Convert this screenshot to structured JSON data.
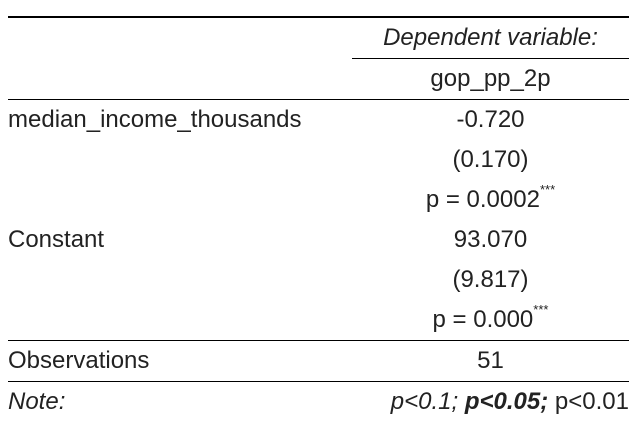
{
  "table": {
    "header": {
      "dependent_variable_caption": "Dependent variable:",
      "model_name": "gop_pp_2p"
    },
    "rows": [
      {
        "label": "median_income_thousands",
        "coefficient": "-0.720",
        "std_error": "(0.170)",
        "p_value": "p = 0.0002",
        "stars": "***"
      },
      {
        "label": "Constant",
        "coefficient": "93.070",
        "std_error": "(9.817)",
        "p_value": "p = 0.000",
        "stars": "***"
      }
    ],
    "observations": {
      "label": "Observations",
      "value": "51"
    },
    "note": {
      "label": "Note:",
      "p1": "p<0.1;",
      "p2": "p<0.05;",
      "p3": "p<0.01"
    }
  }
}
